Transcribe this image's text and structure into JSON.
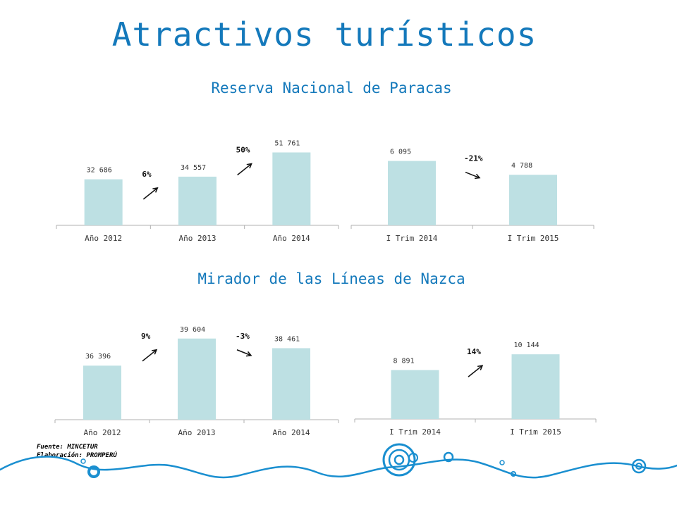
{
  "title": "Atractivos turísticos",
  "sections": [
    {
      "title": "Reserva Nacional de Paracas"
    },
    {
      "title": "Mirador de las Líneas de Nazca"
    }
  ],
  "footer": {
    "source": "Fuente: MINCETUR",
    "elaboration": "Elaboración: PROMPERÚ"
  },
  "colors": {
    "bar": "#bde0e3",
    "title": "#1479bb",
    "text": "#333333"
  },
  "chart_data": [
    {
      "type": "bar",
      "categories": [
        "Año 2012",
        "Año 2013",
        "Año 2014"
      ],
      "values": [
        32686,
        34557,
        51761
      ],
      "labels": [
        "32 686",
        "34 557",
        "51 761"
      ],
      "changes": [
        {
          "label": "6%",
          "direction": "up"
        },
        {
          "label": "50%",
          "direction": "up"
        }
      ],
      "ylim": [
        0,
        60000
      ],
      "title": "",
      "xlabel": "",
      "ylabel": ""
    },
    {
      "type": "bar",
      "categories": [
        "I Trim 2014",
        "I Trim 2015"
      ],
      "values": [
        6095,
        4788
      ],
      "labels": [
        "6 095",
        "4 788"
      ],
      "changes": [
        {
          "label": "-21%",
          "direction": "down"
        }
      ],
      "ylim": [
        0,
        8000
      ],
      "title": "",
      "xlabel": "",
      "ylabel": ""
    },
    {
      "type": "bar",
      "categories": [
        "Año 2012",
        "Año 2013",
        "Año 2014"
      ],
      "values": [
        36396,
        39604,
        38461
      ],
      "labels": [
        "36 396",
        "39 604",
        "38 461"
      ],
      "changes": [
        {
          "label": "9%",
          "direction": "up"
        },
        {
          "label": "-3%",
          "direction": "down"
        }
      ],
      "ylim": [
        30000,
        41000
      ],
      "title": "",
      "xlabel": "",
      "ylabel": ""
    },
    {
      "type": "bar",
      "categories": [
        "I Trim 2014",
        "I Trim 2015"
      ],
      "values": [
        8891,
        10144
      ],
      "labels": [
        "8 891",
        "10 144"
      ],
      "changes": [
        {
          "label": "14%",
          "direction": "up"
        }
      ],
      "ylim": [
        5000,
        12000
      ],
      "title": "",
      "xlabel": "",
      "ylabel": ""
    }
  ]
}
